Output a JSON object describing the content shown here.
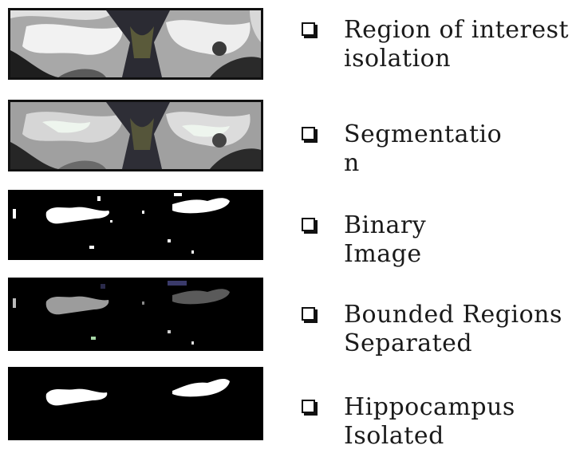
{
  "steps": [
    {
      "label": "Region of interest\nisolation",
      "image": "grayscale-mri-roi"
    },
    {
      "label": "Segmentatio\nn",
      "image": "segmented-mri"
    },
    {
      "label": "Binary\nImage",
      "image": "binary-mask"
    },
    {
      "label": "Bounded Regions\nSeparated",
      "image": "labeled-regions"
    },
    {
      "label": "Hippocampus\nIsolated",
      "image": "hippocampus-mask"
    }
  ],
  "colors": {
    "frame": "#111111",
    "tissue_light": "#e6e6e6",
    "tissue_mid": "#9a9a9a",
    "tissue_dark": "#3a3a3a",
    "mask": "#ffffff",
    "background": "#000000"
  }
}
